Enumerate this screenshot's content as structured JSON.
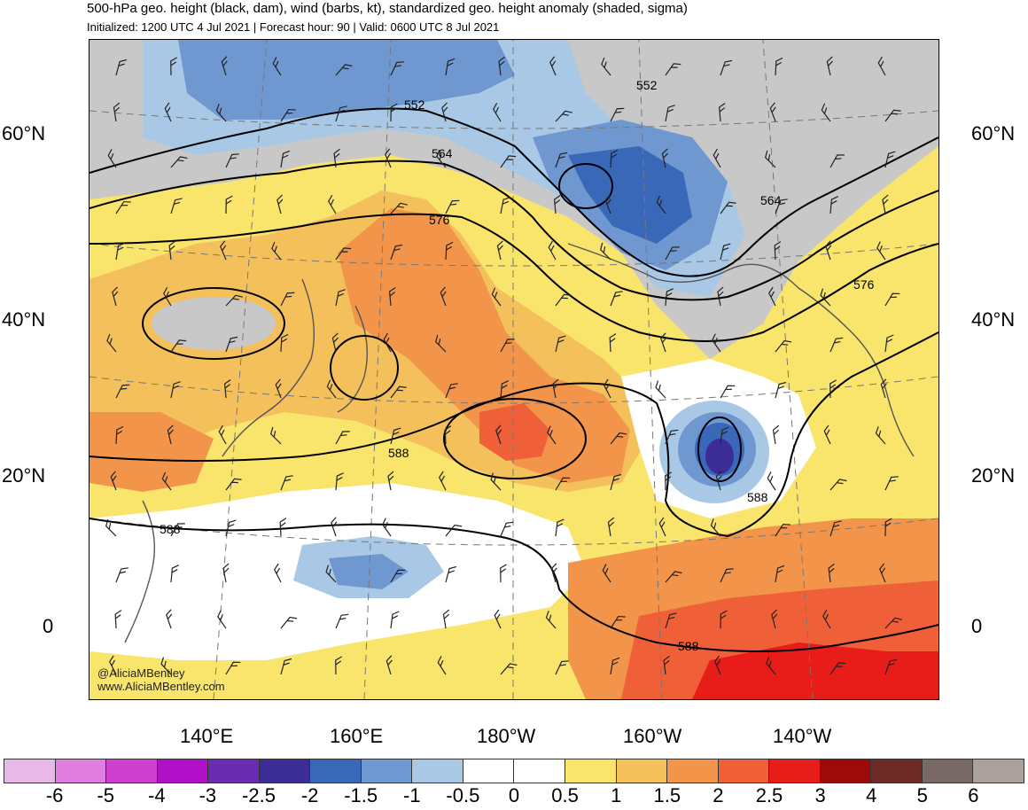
{
  "header": {
    "title": "500-hPa geo. height (black, dam), wind (barbs, kt), standardized geo. height anomaly (shaded, sigma)",
    "subtitle": "Initialized: 1200 UTC 4 Jul 2021 | Forecast hour: 90 | Valid: 0600 UTC 8 Jul 2021"
  },
  "map": {
    "region": "North Pacific",
    "lat_labels": [
      "60°N",
      "40°N",
      "20°N",
      "0"
    ],
    "lon_labels": [
      "140°E",
      "160°E",
      "180°W",
      "160°W",
      "140°W"
    ],
    "contour_labels": [
      "552",
      "552",
      "564",
      "564",
      "576",
      "576",
      "588",
      "588",
      "588",
      "588"
    ],
    "credit_handle": "@AliciaMBentley",
    "credit_site": "www.AliciaMBentley.com"
  },
  "colorbar": {
    "colors": [
      "#e8b8e8",
      "#e07ee0",
      "#d040d0",
      "#b010c8",
      "#6a2cb0",
      "#3c2d96",
      "#3a68b8",
      "#6f97d0",
      "#a8c8e6",
      "#ffffff",
      "#ffffff",
      "#f9e46c",
      "#f4c05c",
      "#f2954a",
      "#f06038",
      "#e81c18",
      "#9e0a0a",
      "#6e2a26",
      "#786866",
      "#aaa09c"
    ],
    "ticks": [
      "-6",
      "-5",
      "-4",
      "-3",
      "-2.5",
      "-2",
      "-1.5",
      "-1",
      "-0.5",
      "0",
      "0.5",
      "1",
      "1.5",
      "2",
      "2.5",
      "3",
      "4",
      "5",
      "6"
    ]
  }
}
